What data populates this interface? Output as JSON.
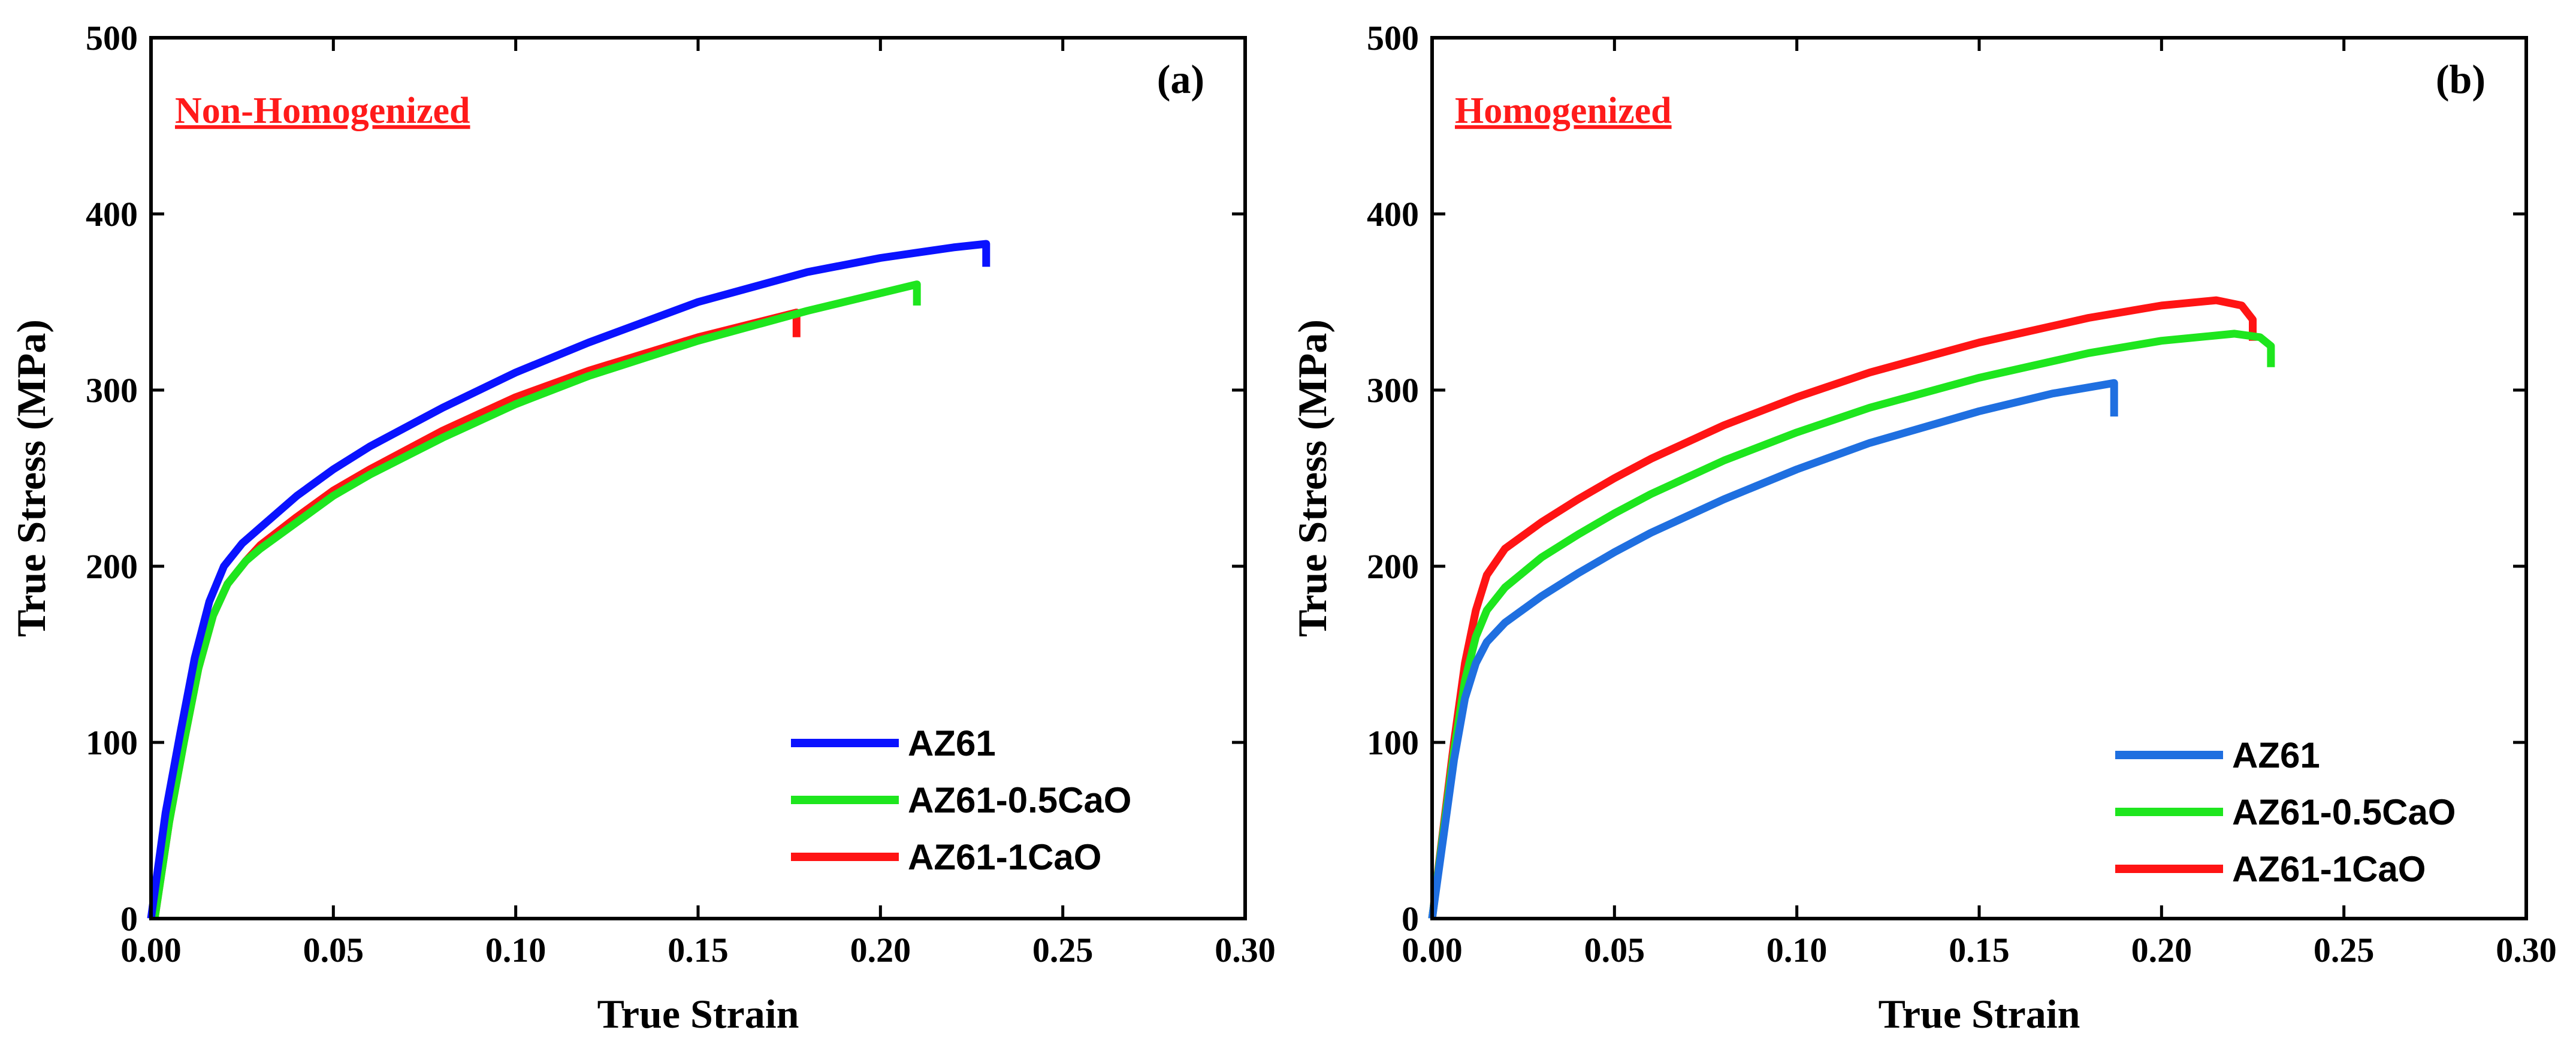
{
  "chart_data": [
    {
      "type": "line",
      "panel_label": "(a)",
      "condition_label": "Non-Homogenized",
      "condition_color": "#ff1a1a",
      "xlabel": "True Strain",
      "ylabel": "True Stress (MPa)",
      "xlim": [
        0,
        0.3
      ],
      "ylim": [
        0,
        500
      ],
      "xticks": [
        "0.00",
        "0.05",
        "0.10",
        "0.15",
        "0.20",
        "0.25",
        "0.30"
      ],
      "yticks": [
        "0",
        "100",
        "200",
        "300",
        "400",
        "500"
      ],
      "legend_position": "bottom-right",
      "series": [
        {
          "name": "AZ61",
          "color": "#0a12ff",
          "x": [
            0,
            0.004,
            0.008,
            0.012,
            0.016,
            0.02,
            0.025,
            0.03,
            0.04,
            0.05,
            0.06,
            0.08,
            0.1,
            0.12,
            0.15,
            0.18,
            0.2,
            0.22,
            0.229
          ],
          "y": [
            0,
            60,
            105,
            148,
            180,
            200,
            213,
            222,
            240,
            255,
            268,
            290,
            310,
            327,
            350,
            367,
            375,
            381,
            383
          ],
          "fracture": [
            0.229,
            370
          ]
        },
        {
          "name": "AZ61-0.5CaO",
          "color": "#1ee61e",
          "x": [
            0.001,
            0.005,
            0.009,
            0.013,
            0.017,
            0.021,
            0.026,
            0.03,
            0.04,
            0.05,
            0.06,
            0.08,
            0.1,
            0.12,
            0.15,
            0.18,
            0.2,
            0.21
          ],
          "y": [
            0,
            55,
            100,
            142,
            172,
            190,
            203,
            210,
            225,
            240,
            252,
            273,
            292,
            308,
            328,
            345,
            355,
            360
          ],
          "fracture": [
            0.21,
            348
          ]
        },
        {
          "name": "AZ61-1CaO",
          "color": "#ff1414",
          "x": [
            0.001,
            0.005,
            0.009,
            0.013,
            0.017,
            0.021,
            0.026,
            0.03,
            0.04,
            0.05,
            0.06,
            0.08,
            0.1,
            0.12,
            0.15,
            0.177
          ],
          "y": [
            0,
            55,
            100,
            142,
            172,
            190,
            203,
            212,
            228,
            243,
            255,
            277,
            296,
            311,
            330,
            344
          ],
          "fracture": [
            0.177,
            330
          ]
        }
      ]
    },
    {
      "type": "line",
      "panel_label": "(b)",
      "condition_label": "Homogenized",
      "condition_color": "#ff1a1a",
      "xlabel": "True Strain",
      "ylabel": "True Stress (MPa)",
      "xlim": [
        0,
        0.3
      ],
      "ylim": [
        0,
        500
      ],
      "xticks": [
        "0.00",
        "0.05",
        "0.10",
        "0.15",
        "0.20",
        "0.25",
        "0.30"
      ],
      "yticks": [
        "0",
        "100",
        "200",
        "300",
        "400",
        "500"
      ],
      "legend_position": "bottom-right",
      "series": [
        {
          "name": "AZ61",
          "color": "#1f6fe0",
          "x": [
            0,
            0.003,
            0.006,
            0.009,
            0.012,
            0.015,
            0.02,
            0.03,
            0.04,
            0.05,
            0.06,
            0.08,
            0.1,
            0.12,
            0.15,
            0.17,
            0.187
          ],
          "y": [
            0,
            45,
            90,
            125,
            145,
            157,
            168,
            183,
            196,
            208,
            219,
            238,
            255,
            270,
            288,
            298,
            304
          ],
          "fracture": [
            0.187,
            285
          ]
        },
        {
          "name": "AZ61-0.5CaO",
          "color": "#1ee61e",
          "x": [
            0,
            0.003,
            0.006,
            0.009,
            0.012,
            0.015,
            0.02,
            0.03,
            0.04,
            0.05,
            0.06,
            0.08,
            0.1,
            0.12,
            0.15,
            0.18,
            0.2,
            0.22,
            0.227,
            0.23
          ],
          "y": [
            0,
            48,
            95,
            135,
            160,
            175,
            188,
            205,
            218,
            230,
            241,
            260,
            276,
            290,
            307,
            321,
            328,
            332,
            330,
            325
          ],
          "fracture": [
            0.23,
            313
          ]
        },
        {
          "name": "AZ61-1CaO",
          "color": "#ff1414",
          "x": [
            0,
            0.003,
            0.006,
            0.009,
            0.012,
            0.015,
            0.02,
            0.03,
            0.04,
            0.05,
            0.06,
            0.08,
            0.1,
            0.12,
            0.15,
            0.18,
            0.2,
            0.215,
            0.222,
            0.225
          ],
          "y": [
            0,
            50,
            100,
            145,
            175,
            195,
            210,
            225,
            238,
            250,
            261,
            280,
            296,
            310,
            327,
            341,
            348,
            351,
            348,
            340
          ],
          "fracture": [
            0.225,
            328
          ]
        }
      ]
    }
  ]
}
